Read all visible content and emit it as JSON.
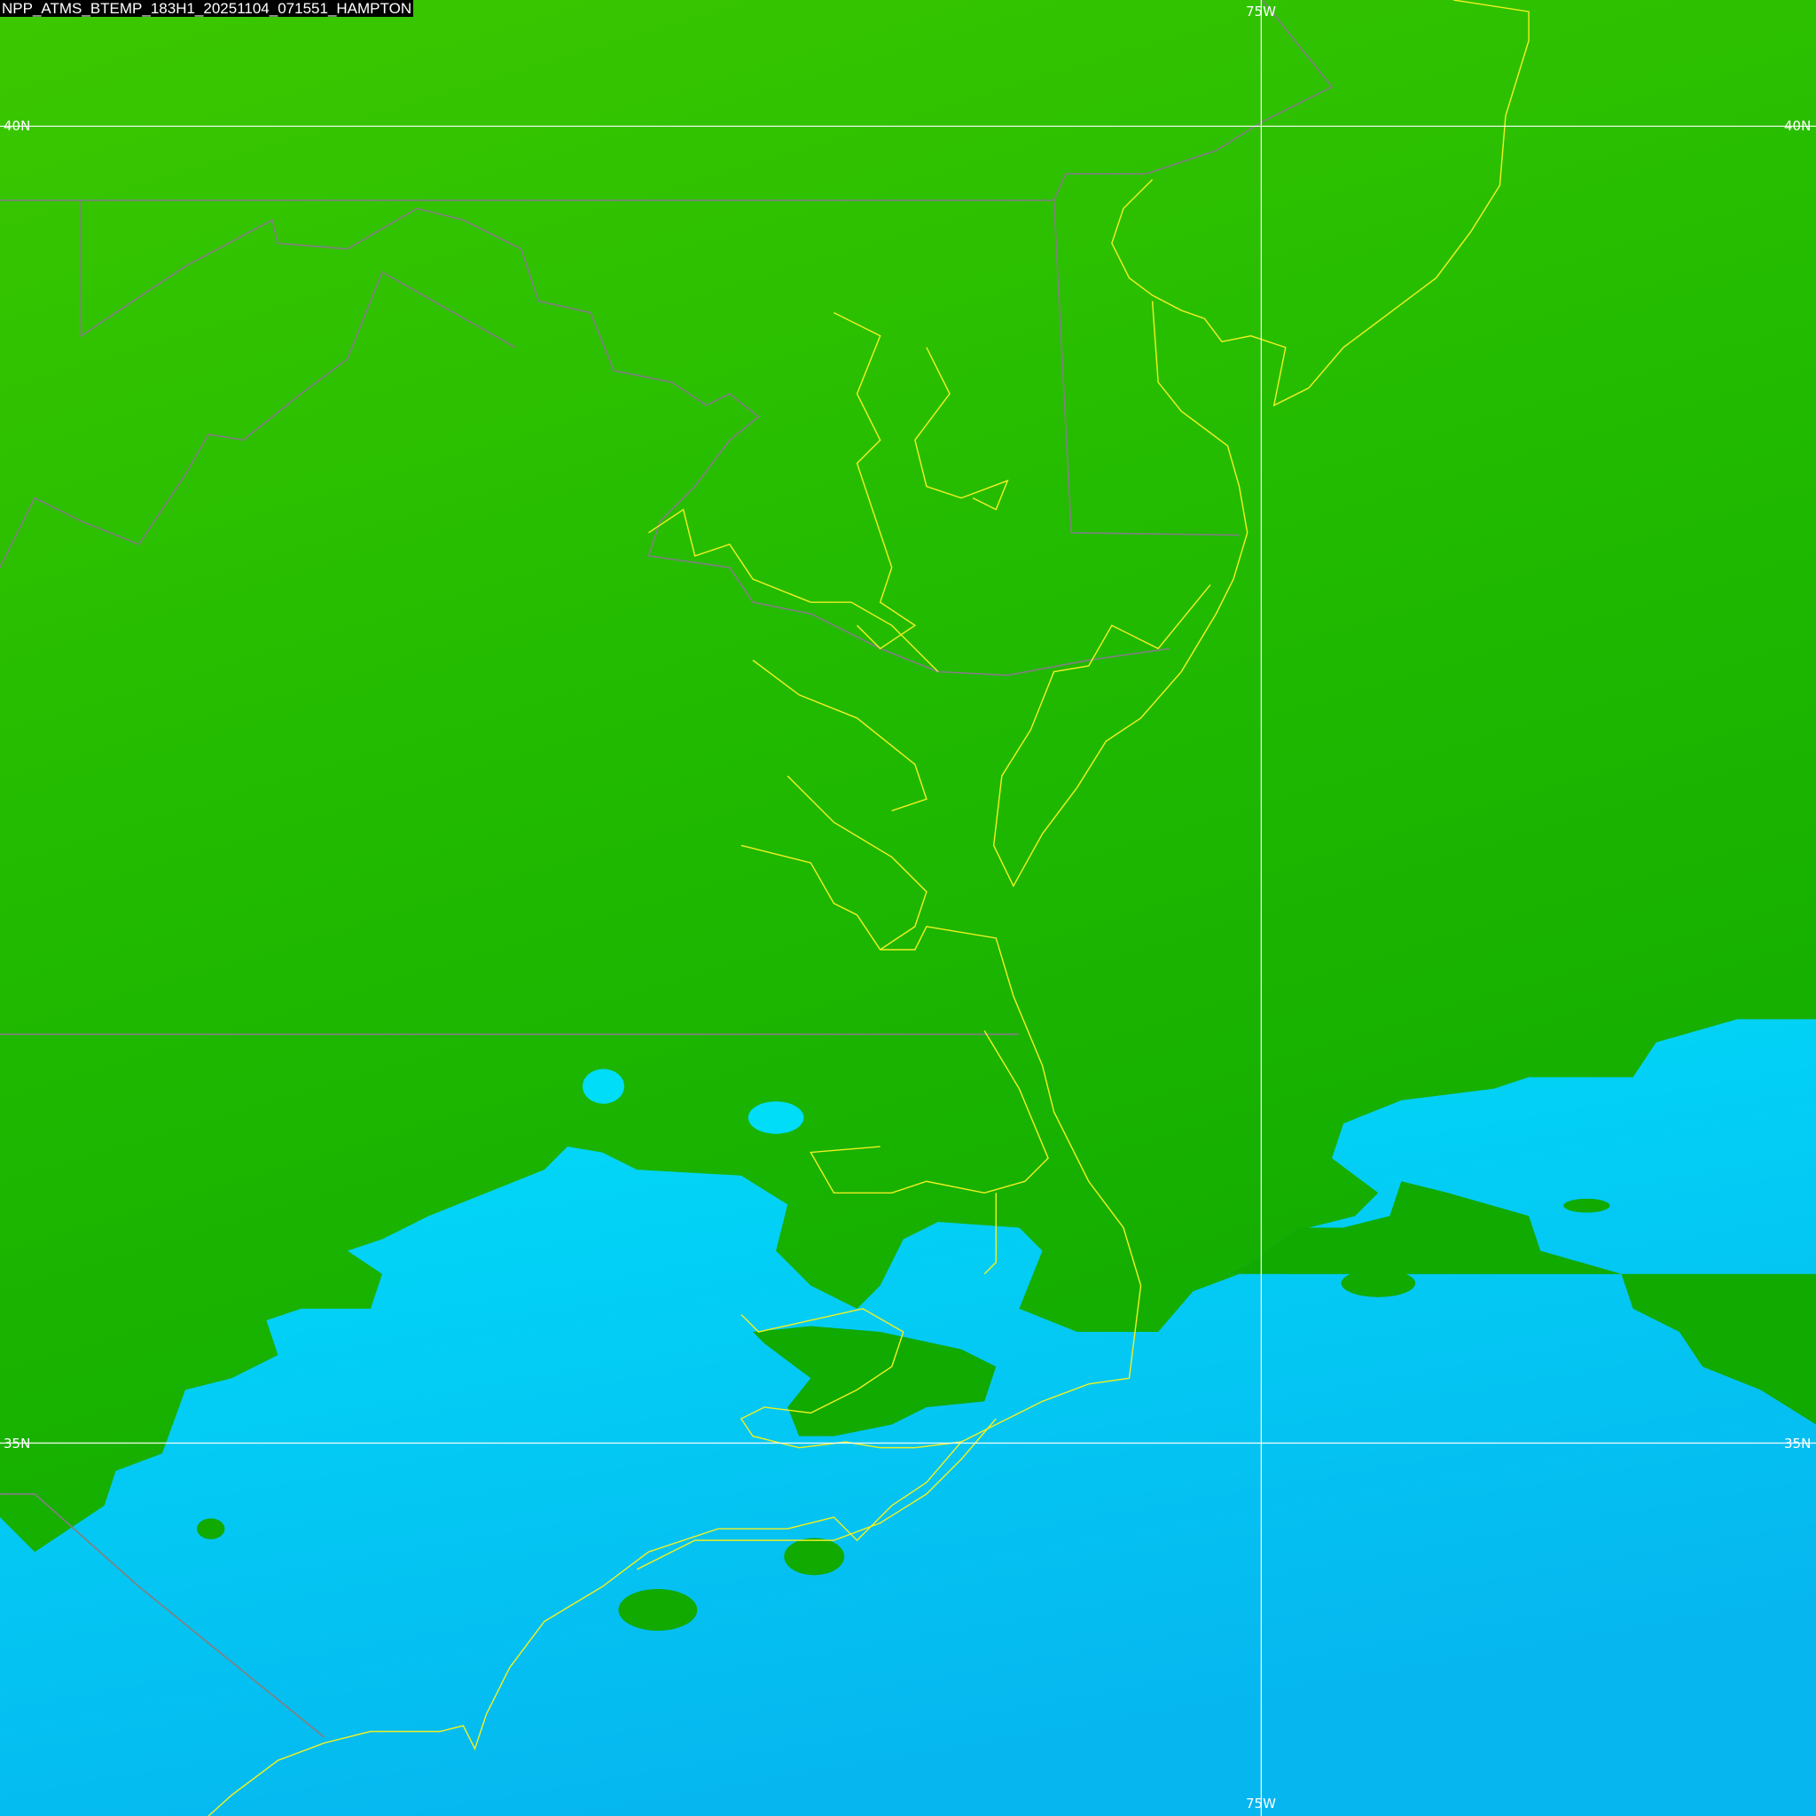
{
  "title": "NPP_ATMS_BTEMP_183H1_20251104_071551_HAMPTON",
  "grid": {
    "lat_labels": [
      "40N",
      "35N"
    ],
    "lon_labels": [
      "75W"
    ]
  },
  "colors": {
    "land_warm": "#3cc800",
    "land_mid": "#1fbb00",
    "land_dark": "#10aa00",
    "cold_cyan": "#00ddf8",
    "cold_blue": "#08b8f0",
    "coastline": "#f0f020",
    "state_border": "#808080",
    "grid_line": "#ffffff"
  }
}
